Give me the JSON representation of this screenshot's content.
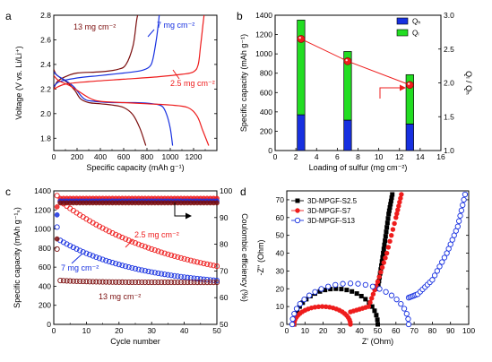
{
  "colors": {
    "dark_red": "#7b0d0d",
    "blue": "#1730e0",
    "red": "#ee1c1c",
    "green": "#22dd22",
    "black": "#000000"
  },
  "chart_data": [
    {
      "panel": "a",
      "type": "line",
      "xlabel": "Specific capacity (mAh g⁻¹)",
      "ylabel": "Voltage (V vs. Li/Li⁺)",
      "xlim": [
        0,
        1400
      ],
      "ylim": [
        1.7,
        2.8
      ],
      "xticks": [
        0,
        200,
        400,
        600,
        800,
        1000,
        1200
      ],
      "yticks": [
        1.8,
        2.0,
        2.2,
        2.4,
        2.6,
        2.8
      ],
      "annotations": [
        {
          "text": "13 mg cm⁻²",
          "color": "dark_red"
        },
        {
          "text": "7 mg cm⁻²",
          "color": "blue"
        },
        {
          "text": "2.5 mg cm⁻²",
          "color": "red"
        }
      ],
      "series": [
        {
          "color": "dark_red",
          "role": "discharge",
          "points": [
            [
              0,
              2.36
            ],
            [
              20,
              2.32
            ],
            [
              60,
              2.29
            ],
            [
              120,
              2.25
            ],
            [
              180,
              2.19
            ],
            [
              230,
              2.12
            ],
            [
              300,
              2.09
            ],
            [
              400,
              2.08
            ],
            [
              500,
              2.07
            ],
            [
              600,
              2.05
            ],
            [
              680,
              1.99
            ],
            [
              740,
              1.88
            ],
            [
              790,
              1.74
            ]
          ]
        },
        {
          "color": "dark_red",
          "role": "charge",
          "points": [
            [
              0,
              2.2
            ],
            [
              30,
              2.26
            ],
            [
              100,
              2.3
            ],
            [
              200,
              2.33
            ],
            [
              400,
              2.34
            ],
            [
              550,
              2.36
            ],
            [
              620,
              2.4
            ],
            [
              680,
              2.55
            ],
            [
              710,
              2.75
            ],
            [
              720,
              2.8
            ]
          ]
        },
        {
          "color": "blue",
          "role": "discharge",
          "points": [
            [
              0,
              2.34
            ],
            [
              30,
              2.31
            ],
            [
              100,
              2.27
            ],
            [
              170,
              2.22
            ],
            [
              260,
              2.12
            ],
            [
              350,
              2.1
            ],
            [
              500,
              2.09
            ],
            [
              700,
              2.09
            ],
            [
              850,
              2.08
            ],
            [
              930,
              2.06
            ],
            [
              970,
              1.99
            ],
            [
              1000,
              1.88
            ],
            [
              1020,
              1.74
            ]
          ]
        },
        {
          "color": "blue",
          "role": "charge",
          "points": [
            [
              0,
              2.22
            ],
            [
              50,
              2.26
            ],
            [
              200,
              2.29
            ],
            [
              400,
              2.31
            ],
            [
              600,
              2.33
            ],
            [
              750,
              2.35
            ],
            [
              820,
              2.38
            ],
            [
              850,
              2.44
            ],
            [
              880,
              2.6
            ],
            [
              900,
              2.75
            ],
            [
              905,
              2.8
            ]
          ]
        },
        {
          "color": "red",
          "role": "discharge",
          "points": [
            [
              0,
              2.31
            ],
            [
              40,
              2.27
            ],
            [
              150,
              2.22
            ],
            [
              300,
              2.13
            ],
            [
              400,
              2.1
            ],
            [
              600,
              2.09
            ],
            [
              800,
              2.08
            ],
            [
              1000,
              2.07
            ],
            [
              1150,
              2.05
            ],
            [
              1230,
              1.98
            ],
            [
              1280,
              1.86
            ],
            [
              1330,
              1.74
            ]
          ]
        },
        {
          "color": "red",
          "role": "charge",
          "points": [
            [
              0,
              2.2
            ],
            [
              100,
              2.24
            ],
            [
              300,
              2.26
            ],
            [
              600,
              2.28
            ],
            [
              900,
              2.3
            ],
            [
              1100,
              2.32
            ],
            [
              1200,
              2.34
            ],
            [
              1240,
              2.4
            ],
            [
              1260,
              2.55
            ],
            [
              1280,
              2.72
            ],
            [
              1290,
              2.8
            ]
          ]
        }
      ]
    },
    {
      "panel": "b",
      "type": "bar",
      "xlabel": "Loading of sulfur (mg cm⁻²)",
      "ylabel": "Specific capacity (mAh g⁻¹)",
      "y2label": "Qₗ / Qₕ",
      "xlim": [
        0,
        16
      ],
      "ylim": [
        0,
        1400
      ],
      "y2lim": [
        1.0,
        3.0
      ],
      "xticks": [
        0,
        2,
        4,
        6,
        8,
        10,
        12,
        14,
        16
      ],
      "yticks": [
        0,
        200,
        400,
        600,
        800,
        1000,
        1200,
        1400
      ],
      "y2ticks": [
        1.0,
        1.5,
        2.0,
        2.5,
        3.0
      ],
      "legend": [
        {
          "label": "Qₕ",
          "color": "blue"
        },
        {
          "label": "Qₗ",
          "color": "green"
        }
      ],
      "x": [
        2.5,
        7,
        13
      ],
      "stack": [
        {
          "name": "Qₕ",
          "color": "blue",
          "values": [
            370,
            315,
            275
          ]
        },
        {
          "name": "Qₗ",
          "color": "green",
          "values": [
            980,
            710,
            510
          ]
        }
      ],
      "ratio": {
        "color": "red",
        "values": [
          2.65,
          2.32,
          1.97
        ]
      }
    },
    {
      "panel": "c",
      "type": "scatter",
      "xlabel": "Cycle number",
      "ylabel": "Specific capacity (mAh g⁻¹ₛ)",
      "y2label": "Coulombic efficiency (%)",
      "xlim": [
        0,
        50
      ],
      "ylim": [
        0,
        1400
      ],
      "y2lim": [
        50,
        100
      ],
      "xticks": [
        0,
        10,
        20,
        30,
        40,
        50
      ],
      "yticks": [
        0,
        200,
        400,
        600,
        800,
        1000,
        1200,
        1400
      ],
      "y2ticks": [
        50,
        60,
        70,
        80,
        90,
        100
      ],
      "annotations": [
        {
          "text": "2.5 mg cm⁻²",
          "color": "red"
        },
        {
          "text": "7 mg cm⁻²",
          "color": "blue"
        },
        {
          "text": "13 mg cm⁻²",
          "color": "dark_red"
        }
      ],
      "series": [
        {
          "color": "red",
          "kind": "capacity",
          "start": 1290,
          "end": 610,
          "decay": 0.035,
          "first": [
            1350,
            1290
          ]
        },
        {
          "color": "blue",
          "kind": "capacity",
          "start": 880,
          "end": 460,
          "decay": 0.045,
          "first": [
            1020,
            880
          ]
        },
        {
          "color": "dark_red",
          "kind": "capacity",
          "start": 460,
          "end": 440,
          "decay": 0.1,
          "first": [
            790,
            460
          ]
        },
        {
          "color": "red",
          "kind": "efficiency",
          "level": 97.2,
          "first": 94
        },
        {
          "color": "blue",
          "kind": "efficiency",
          "level": 96.2,
          "first": 91
        },
        {
          "color": "dark_red",
          "kind": "efficiency",
          "level": 95.5,
          "first": 82
        }
      ]
    },
    {
      "panel": "d",
      "type": "scatter",
      "xlabel": "Z' (Ohm)",
      "ylabel": "-Z'' (Ohm)",
      "xlim": [
        0,
        100
      ],
      "ylim": [
        0,
        75
      ],
      "xticks": [
        0,
        10,
        20,
        30,
        40,
        50,
        60,
        70,
        80,
        90,
        100
      ],
      "yticks": [
        0,
        10,
        20,
        30,
        40,
        50,
        60,
        70
      ],
      "legend": [
        {
          "label": "3D-MPGF-S2.5",
          "color": "black",
          "marker": "square"
        },
        {
          "label": "3D-MPGF-S7",
          "color": "red",
          "marker": "circle"
        },
        {
          "label": "3D-MPGF-S13",
          "color": "blue",
          "marker": "open-circle"
        }
      ],
      "series": [
        {
          "name": "3D-MPGF-S2.5",
          "color": "black",
          "marker": "square",
          "arc": {
            "r0": 4,
            "r1": 50,
            "h": 20
          },
          "tail": [
            [
              50,
              20
            ],
            [
              52,
              33
            ],
            [
              54,
              47
            ],
            [
              56,
              62
            ],
            [
              58,
              73
            ]
          ]
        },
        {
          "name": "3D-MPGF-S7",
          "color": "red",
          "marker": "circle",
          "arc": {
            "r0": 4,
            "r1": 35,
            "h": 10
          },
          "tail": [
            [
              35,
              7
            ],
            [
              45,
              10
            ],
            [
              50,
              24
            ],
            [
              55,
              40
            ],
            [
              60,
              60
            ],
            [
              63,
              73
            ]
          ]
        },
        {
          "name": "3D-MPGF-S13",
          "color": "blue",
          "marker": "open-circle",
          "arc": {
            "r0": 3,
            "r1": 67,
            "h": 23
          },
          "tail": [
            [
              67,
              15
            ],
            [
              72,
              17
            ],
            [
              80,
              25
            ],
            [
              88,
              40
            ],
            [
              94,
              55
            ],
            [
              98,
              73
            ]
          ]
        }
      ]
    }
  ]
}
